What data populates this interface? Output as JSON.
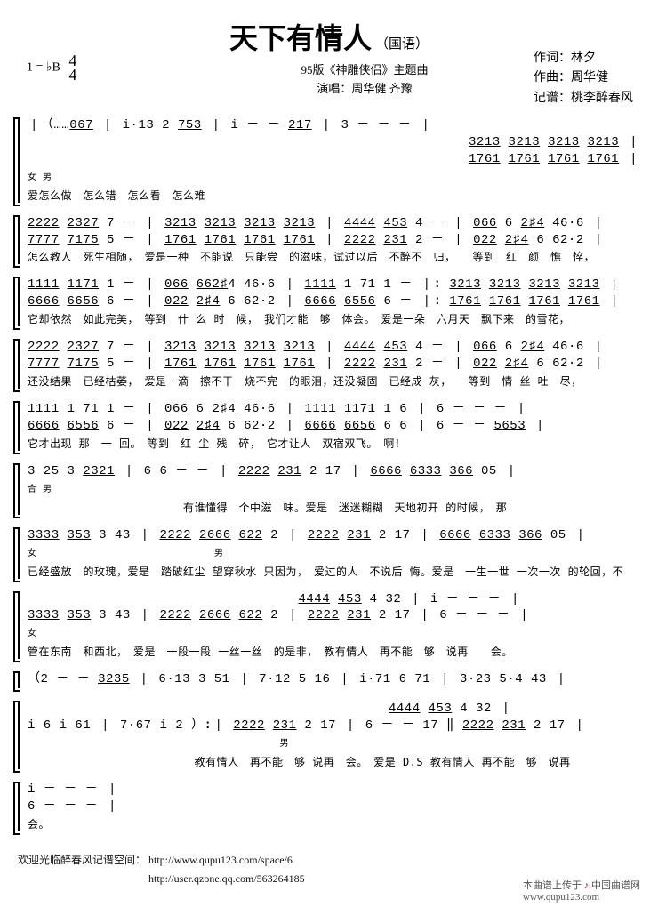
{
  "header": {
    "title": "天下有情人",
    "suffix": "（国语）",
    "key_label": "1 = ♭B",
    "time_top": "4",
    "time_bot": "4",
    "subtitle": "95版《神雕侠侣》主题曲",
    "performer_label": "演唱：",
    "performer": "周华健  齐豫",
    "lyricist_label": "作词：",
    "lyricist": "林夕",
    "composer_label": "作曲：",
    "composer": "周华健",
    "notation_label": "记谱：",
    "notation": "桃李醉春风"
  },
  "systems": [
    {
      "top": "|（……067 | i·13 2 753 | i － － 217 | 3 － － － |",
      "mid_upper": "3213 3213 3213 3213 |",
      "mid_lower": "1761 1761 1761 1761 |",
      "roles": "女  男",
      "lyric": "爱怎么做　怎么错　怎么看　怎么难"
    },
    {
      "upper": "2222 2327 7 － | 3213 3213 3213 3213 | 4444 453 4 － | 066 6 2♯4 46·6 |",
      "lower": "7777 7175 5 － | 1761 1761 1761 1761 | 2222 231 2 － | 022 2♯4 6 62·2 |",
      "lyric": "怎么教人　死生相随，　爱是一种　不能说　只能尝　的滋味，试过以后　不醉不　归，　　等到　红　颜　憔　悴，"
    },
    {
      "upper": "1111 1171 1 － | 066 662♯4 46·6 | 1111 1 71 1 － |: 3213 3213 3213 3213 |",
      "lower": "6666 6656 6 － | 022 2♯4 6 62·2 | 6666 6556 6 － |: 1761 1761 1761 1761 |",
      "lyric": "它却依然　如此完美，　等到　什 么 时　候，　我们才能　够　体会。　爱是一朵　六月天　飘下来　的雪花，"
    },
    {
      "upper": "2222 2327 7 － | 3213 3213 3213 3213 | 4444 453 4 － | 066 6 2♯4 46·6 |",
      "lower": "7777 7175 5 － | 1761 1761 1761 1761 | 2222 231 2 － | 022 2♯4 6 62·2 |",
      "lyric": "还没结果　已经枯萎，　爱是一滴　擦不干　烧不完　的眼泪，还没凝固　已经成 灰，　　等到　情 丝 吐　尽，"
    },
    {
      "upper": "1111 1 71 1 － | 066 6 2♯4 46·6 | 1111 1171 1 6 | 6 － － － |",
      "lower": "6666 6556 6 － | 022 2♯4 6 62·2 | 6666 6656 6 6 | 6 － － 5653 |",
      "lyric": "它才出现 那　一 回。　等到　红 尘 残　碎，　它才让人　双宿双飞。　啊！"
    },
    {
      "single": "3 25 3 2321 | 6 6 － － | 2222 231 2 17 | 6666 6333 366 05 |",
      "roles": "合  男",
      "lyric": "　　　　　　　　　　　　　　有谁懂得　个中滋　味。爱是　迷迷糊糊　天地初开 的时候，　那"
    },
    {
      "single": "3333 353 3 43 | 2222 2666 622 2 | 2222 231 2 17 | 6666 6333 366 05 |",
      "roles": "女　　　　　　　　　　　　　　　　　　　男",
      "lyric": "已经盛放　的玫瑰，爱是　踏破红尘 望穿秋水 只因为，　爱过的人　不说后 悔。爱是　一生一世 一次一次 的轮回，不"
    },
    {
      "upper_top": "　　　　　　　　　　　　　　　　　　　　　4444 453 4 32 | i － － － |",
      "single": "3333 353 3 43 | 2222 2666 622 2 | 2222 231 2 17 | 6 － － － |",
      "roles": "女",
      "lyric": "管在东南　和西北，　爱是　一段一段 一丝一丝　的是非，　教有情人　再不能　够　说再　　会。"
    },
    {
      "single": "（2 － － 3235 | 6·13 3 51 | 7·12 5 16 | i·71 6 71 | 3·23 5·4 43 |"
    },
    {
      "upper_top": "　　　　　　　　　　　　　　　　　　　　　　　　　　　　4444 453 4 32 |",
      "single": "i 6 i 61 | 7·67 i 2 ）:| 2222 231 2 17 | 6 － － 17 ‖ 2222 231 2 17 |",
      "roles": "　　　　　　　　　　　　　　　　　　　　　　　　　　　男",
      "lyric": "　　　　　　　　　　　　　　　教有情人　再不能　够 说再　会。　爱是 D.S 教有情人 再不能　够　说再"
    },
    {
      "upper": "i － － － |",
      "lower": "6 － － － |",
      "lyric": "会。"
    }
  ],
  "footer": {
    "line1_label": "欢迎光临醉春风记谱空间：",
    "url1": "http://www.qupu123.com/space/6",
    "url2": "http://user.qzone.qq.com/563264185",
    "watermark_prefix": "本曲谱上传于",
    "watermark_site": "中国曲谱网",
    "watermark_url": "www.qupu123.com"
  }
}
